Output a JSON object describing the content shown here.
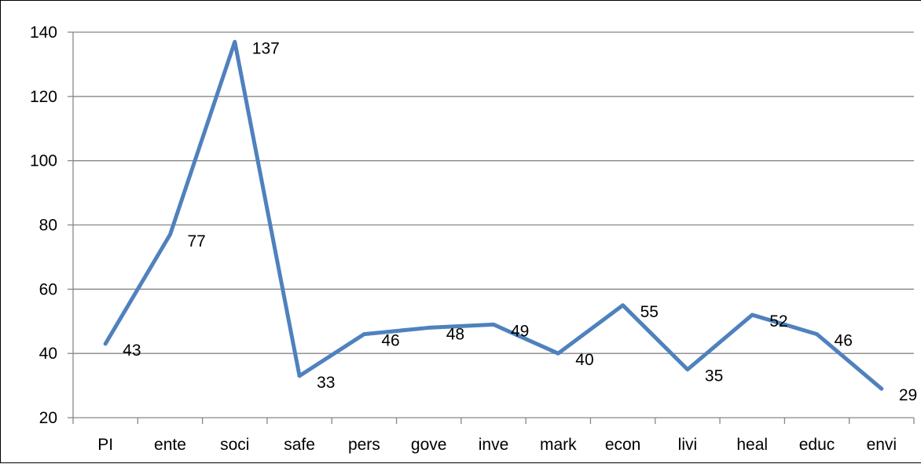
{
  "chart_data": {
    "type": "line",
    "title": "",
    "xlabel": "",
    "ylabel": "",
    "categories": [
      "PI",
      "ente",
      "soci",
      "safe",
      "pers",
      "gove",
      "inve",
      "mark",
      "econ",
      "livi",
      "heal",
      "educ",
      "envi"
    ],
    "series": [
      {
        "values": [
          43,
          77,
          137,
          33,
          46,
          48,
          49,
          40,
          55,
          35,
          52,
          46,
          29
        ]
      }
    ],
    "ylim": [
      20,
      140
    ],
    "yticks": [
      20,
      40,
      60,
      80,
      100,
      120,
      140
    ],
    "grid": true,
    "legend": "none",
    "line_color": "#4f81bd",
    "grid_color": "#878787"
  }
}
